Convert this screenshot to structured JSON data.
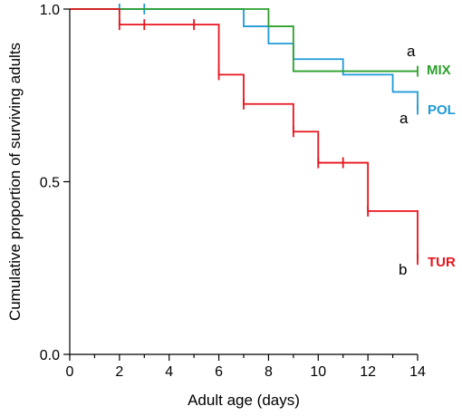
{
  "chart_data": {
    "type": "line",
    "subtype": "kaplan-meier step",
    "title": "",
    "xlabel": "Adult age (days)",
    "ylabel": "Cumulative proportion of surviving adults",
    "xlim": [
      0,
      14
    ],
    "ylim": [
      0,
      1
    ],
    "x_major_ticks": [
      0,
      2,
      4,
      6,
      8,
      10,
      12,
      14
    ],
    "x_minor_ticks": [
      1,
      3,
      5,
      7,
      9,
      11,
      13
    ],
    "y_ticks": [
      0,
      0.5,
      1
    ],
    "x_tick_labels": [
      "0",
      "2",
      "4",
      "6",
      "8",
      "10",
      "12",
      "14"
    ],
    "y_tick_labels": [
      "0.0",
      "0.5",
      "1.0"
    ],
    "grid": false,
    "series": [
      {
        "name": "MIX",
        "color": "#2ca02c",
        "letter": "a",
        "steps": [
          [
            0,
            1.0
          ],
          [
            8,
            0.95
          ],
          [
            9,
            0.82
          ],
          [
            14,
            0.82
          ]
        ],
        "censored": [
          [
            14,
            0.82
          ]
        ]
      },
      {
        "name": "POL",
        "color": "#1f9ad6",
        "letter": "a",
        "steps": [
          [
            0,
            1.0
          ],
          [
            7,
            0.95
          ],
          [
            8,
            0.9
          ],
          [
            9,
            0.855
          ],
          [
            11,
            0.81
          ],
          [
            13,
            0.76
          ],
          [
            14,
            0.71
          ]
        ],
        "censored": [
          [
            2,
            1.0
          ],
          [
            3,
            1.0
          ],
          [
            14,
            0.71
          ]
        ]
      },
      {
        "name": "TUR",
        "color": "#e8141c",
        "letter": "b",
        "steps": [
          [
            0,
            1.0
          ],
          [
            2,
            0.955
          ],
          [
            6,
            0.81
          ],
          [
            7,
            0.725
          ],
          [
            9,
            0.645
          ],
          [
            10,
            0.555
          ],
          [
            12,
            0.415
          ],
          [
            14,
            0.275
          ]
        ],
        "censored": [
          [
            2,
            0.955
          ],
          [
            3,
            0.955
          ],
          [
            5,
            0.955
          ],
          [
            6,
            0.81
          ],
          [
            7,
            0.725
          ],
          [
            9,
            0.645
          ],
          [
            10,
            0.555
          ],
          [
            11,
            0.555
          ],
          [
            12,
            0.415
          ],
          [
            14,
            0.275
          ]
        ]
      }
    ]
  }
}
